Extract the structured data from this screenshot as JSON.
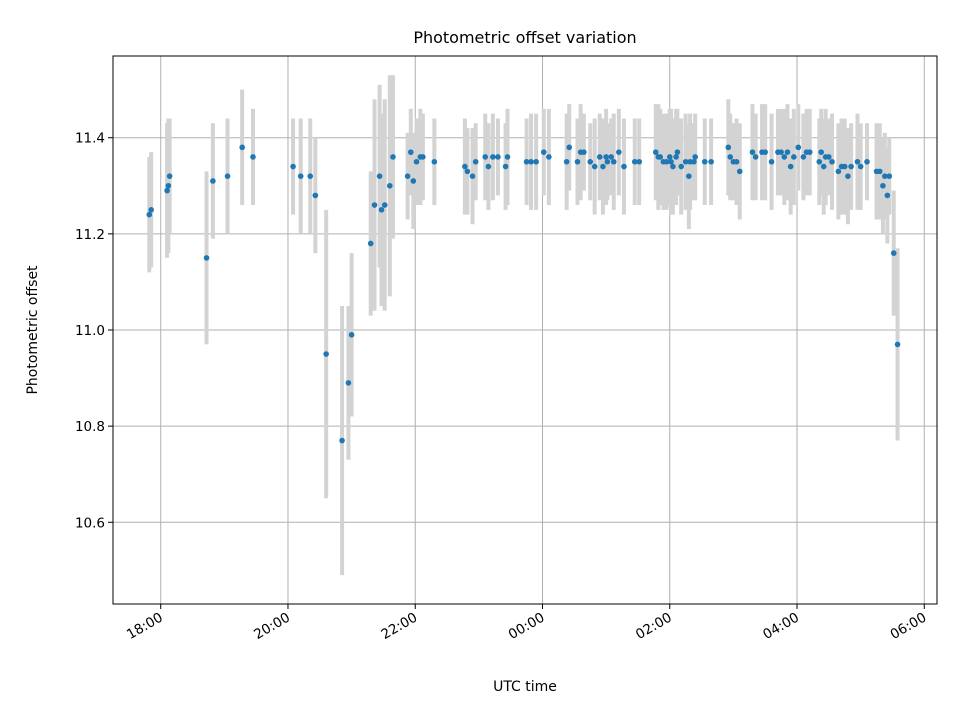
{
  "chart_data": {
    "type": "scatter",
    "title": "Photometric offset variation",
    "xlabel": "UTC time",
    "ylabel": "Photometric offset",
    "xlim": [
      17.25,
      30.2
    ],
    "ylim": [
      10.43,
      11.57
    ],
    "grid": true,
    "x_ticks": [
      {
        "value": 18,
        "label": "18:00"
      },
      {
        "value": 20,
        "label": "20:00"
      },
      {
        "value": 22,
        "label": "22:00"
      },
      {
        "value": 24,
        "label": "00:00"
      },
      {
        "value": 26,
        "label": "02:00"
      },
      {
        "value": 28,
        "label": "04:00"
      },
      {
        "value": 30,
        "label": "06:00"
      }
    ],
    "y_ticks": [
      10.6,
      10.8,
      11.0,
      11.2,
      11.4
    ],
    "point_color": "#1f77b4",
    "errorbar_color": "#d3d3d3",
    "series": [
      {
        "name": "offset",
        "points": [
          [
            17.82,
            11.24,
            0.12
          ],
          [
            17.85,
            11.25,
            0.12
          ],
          [
            18.1,
            11.29,
            0.14
          ],
          [
            18.12,
            11.3,
            0.14
          ],
          [
            18.14,
            11.32,
            0.12
          ],
          [
            18.72,
            11.15,
            0.18
          ],
          [
            18.82,
            11.31,
            0.12
          ],
          [
            19.05,
            11.32,
            0.12
          ],
          [
            19.28,
            11.38,
            0.12
          ],
          [
            19.45,
            11.36,
            0.1
          ],
          [
            20.08,
            11.34,
            0.1
          ],
          [
            20.2,
            11.32,
            0.12
          ],
          [
            20.35,
            11.32,
            0.12
          ],
          [
            20.43,
            11.28,
            0.12
          ],
          [
            20.6,
            10.95,
            0.3
          ],
          [
            20.85,
            10.77,
            0.28
          ],
          [
            20.95,
            10.89,
            0.16
          ],
          [
            21.0,
            10.99,
            0.17
          ],
          [
            21.3,
            11.18,
            0.15
          ],
          [
            21.36,
            11.26,
            0.22
          ],
          [
            21.44,
            11.32,
            0.19
          ],
          [
            21.47,
            11.25,
            0.2
          ],
          [
            21.52,
            11.26,
            0.22
          ],
          [
            21.6,
            11.3,
            0.23
          ],
          [
            21.65,
            11.36,
            0.17
          ],
          [
            21.88,
            11.32,
            0.09
          ],
          [
            21.93,
            11.37,
            0.09
          ],
          [
            21.97,
            11.31,
            0.1
          ],
          [
            22.02,
            11.35,
            0.09
          ],
          [
            22.08,
            11.36,
            0.1
          ],
          [
            22.12,
            11.36,
            0.09
          ],
          [
            22.3,
            11.35,
            0.09
          ],
          [
            22.78,
            11.34,
            0.1
          ],
          [
            22.82,
            11.33,
            0.09
          ],
          [
            22.9,
            11.32,
            0.1
          ],
          [
            22.95,
            11.35,
            0.08
          ],
          [
            23.1,
            11.36,
            0.09
          ],
          [
            23.15,
            11.34,
            0.09
          ],
          [
            23.22,
            11.36,
            0.09
          ],
          [
            23.3,
            11.36,
            0.08
          ],
          [
            23.42,
            11.34,
            0.09
          ],
          [
            23.45,
            11.36,
            0.1
          ],
          [
            23.75,
            11.35,
            0.09
          ],
          [
            23.82,
            11.35,
            0.1
          ],
          [
            23.9,
            11.35,
            0.1
          ],
          [
            24.02,
            11.37,
            0.09
          ],
          [
            24.1,
            11.36,
            0.1
          ],
          [
            24.38,
            11.35,
            0.1
          ],
          [
            24.42,
            11.38,
            0.09
          ],
          [
            24.55,
            11.35,
            0.09
          ],
          [
            24.6,
            11.37,
            0.1
          ],
          [
            24.65,
            11.37,
            0.08
          ],
          [
            24.75,
            11.35,
            0.08
          ],
          [
            24.82,
            11.34,
            0.1
          ],
          [
            24.9,
            11.36,
            0.09
          ],
          [
            24.95,
            11.34,
            0.1
          ],
          [
            25.0,
            11.36,
            0.1
          ],
          [
            25.02,
            11.35,
            0.08
          ],
          [
            25.08,
            11.36,
            0.08
          ],
          [
            25.12,
            11.35,
            0.1
          ],
          [
            25.2,
            11.37,
            0.09
          ],
          [
            25.28,
            11.34,
            0.1
          ],
          [
            25.45,
            11.35,
            0.09
          ],
          [
            25.52,
            11.35,
            0.09
          ],
          [
            25.78,
            11.37,
            0.1
          ],
          [
            25.82,
            11.36,
            0.11
          ],
          [
            25.85,
            11.36,
            0.1
          ],
          [
            25.9,
            11.35,
            0.1
          ],
          [
            25.95,
            11.35,
            0.1
          ],
          [
            26.0,
            11.36,
            0.1
          ],
          [
            26.02,
            11.35,
            0.11
          ],
          [
            26.05,
            11.34,
            0.1
          ],
          [
            26.1,
            11.36,
            0.1
          ],
          [
            26.12,
            11.37,
            0.09
          ],
          [
            26.18,
            11.34,
            0.1
          ],
          [
            26.25,
            11.35,
            0.1
          ],
          [
            26.3,
            11.32,
            0.11
          ],
          [
            26.32,
            11.35,
            0.1
          ],
          [
            26.38,
            11.35,
            0.08
          ],
          [
            26.4,
            11.36,
            0.09
          ],
          [
            26.55,
            11.35,
            0.09
          ],
          [
            26.65,
            11.35,
            0.09
          ],
          [
            26.92,
            11.38,
            0.1
          ],
          [
            26.95,
            11.36,
            0.09
          ],
          [
            27.0,
            11.35,
            0.08
          ],
          [
            27.05,
            11.35,
            0.09
          ],
          [
            27.1,
            11.33,
            0.1
          ],
          [
            27.3,
            11.37,
            0.1
          ],
          [
            27.35,
            11.36,
            0.09
          ],
          [
            27.45,
            11.37,
            0.1
          ],
          [
            27.5,
            11.37,
            0.1
          ],
          [
            27.6,
            11.35,
            0.1
          ],
          [
            27.7,
            11.37,
            0.09
          ],
          [
            27.75,
            11.37,
            0.09
          ],
          [
            27.8,
            11.36,
            0.1
          ],
          [
            27.85,
            11.37,
            0.1
          ],
          [
            27.9,
            11.34,
            0.1
          ],
          [
            27.95,
            11.36,
            0.1
          ],
          [
            28.02,
            11.38,
            0.09
          ],
          [
            28.1,
            11.36,
            0.09
          ],
          [
            28.15,
            11.37,
            0.09
          ],
          [
            28.2,
            11.37,
            0.09
          ],
          [
            28.35,
            11.35,
            0.09
          ],
          [
            28.38,
            11.37,
            0.09
          ],
          [
            28.42,
            11.34,
            0.1
          ],
          [
            28.45,
            11.36,
            0.1
          ],
          [
            28.5,
            11.36,
            0.08
          ],
          [
            28.55,
            11.35,
            0.1
          ],
          [
            28.65,
            11.33,
            0.1
          ],
          [
            28.7,
            11.34,
            0.1
          ],
          [
            28.75,
            11.34,
            0.1
          ],
          [
            28.8,
            11.32,
            0.1
          ],
          [
            28.85,
            11.34,
            0.09
          ],
          [
            28.95,
            11.35,
            0.1
          ],
          [
            29.0,
            11.34,
            0.09
          ],
          [
            29.1,
            11.35,
            0.08
          ],
          [
            29.25,
            11.33,
            0.1
          ],
          [
            29.3,
            11.33,
            0.1
          ],
          [
            29.35,
            11.3,
            0.1
          ],
          [
            29.38,
            11.32,
            0.09
          ],
          [
            29.42,
            11.28,
            0.1
          ],
          [
            29.45,
            11.32,
            0.08
          ],
          [
            29.52,
            11.16,
            0.13
          ],
          [
            29.58,
            10.97,
            0.2
          ]
        ]
      }
    ]
  }
}
